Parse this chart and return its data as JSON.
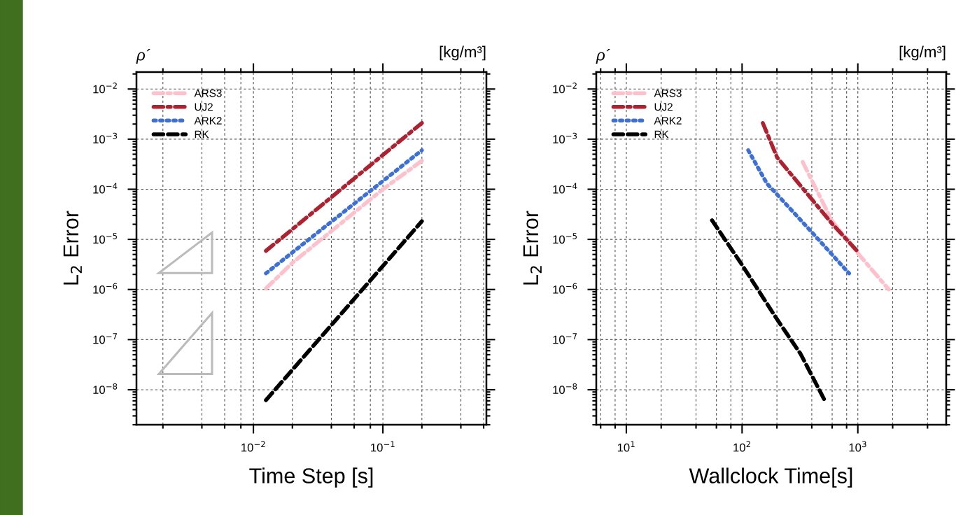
{
  "chart_data": [
    {
      "type": "line",
      "title": "ρ´",
      "annotations": [
        "[kg/m³]"
      ],
      "xlabel": "Time Step [s]",
      "ylabel": "L$_{2}$ Error",
      "log": "xy",
      "grid": true,
      "legend": "top left",
      "xlim": [
        0.00125,
        0.63
      ],
      "ylim": [
        2e-09,
        0.0218
      ],
      "xticks": [
        {
          "value": 0.01,
          "label": "10$^{−2}$"
        },
        {
          "value": 0.1,
          "label": "10$^{−1}$"
        }
      ],
      "yticks": [
        {
          "value": 1e-08,
          "label": "10$^{−8}$"
        },
        {
          "value": 1e-07,
          "label": "10$^{−7}$"
        },
        {
          "value": 1e-06,
          "label": "10$^{−6}$"
        },
        {
          "value": 1e-05,
          "label": "10$^{−5}$"
        },
        {
          "value": 0.0001,
          "label": "10$^{−4}$"
        },
        {
          "value": 0.001,
          "label": "10$^{−3}$"
        },
        {
          "value": 0.01,
          "label": "10$^{−2}$"
        }
      ],
      "series": [
        {
          "name": "ARS3",
          "color": "#ffc0cb",
          "line_style": "dashdot",
          "x": [
            0.0125,
            0.02,
            0.1,
            0.2
          ],
          "values": [
            1.05e-06,
            3.4e-06,
            0.0001,
            0.00037
          ]
        },
        {
          "name": "UJ2",
          "color": "#b0202e",
          "line_style": "dashdot",
          "x": [
            0.0125,
            0.2
          ],
          "values": [
            5.9e-06,
            0.0021
          ]
        },
        {
          "name": "ARK2",
          "color": "#3a6fdc",
          "line_style": "dotted",
          "x": [
            0.0125,
            0.2
          ],
          "values": [
            2.1e-06,
            0.0006
          ]
        },
        {
          "name": "RK",
          "color": "#000000",
          "line_style": "dashed",
          "x": [
            0.0125,
            0.2
          ],
          "values": [
            6.2e-09,
            2.3e-05
          ]
        }
      ]
    },
    {
      "type": "line",
      "title": "ρ´",
      "annotations": [
        "[kg/m³]"
      ],
      "xlabel": "Wallclock Time[s]",
      "ylabel": "L$_{2}$ Error",
      "log": "xy",
      "grid": true,
      "legend": "top left",
      "xlim": [
        5.5,
        5800
      ],
      "ylim": [
        2e-09,
        0.0218
      ],
      "xticks": [
        {
          "value": 10,
          "label": "10$^{1}$"
        },
        {
          "value": 100,
          "label": "10$^{2}$"
        },
        {
          "value": 1000,
          "label": "10$^{3}$"
        }
      ],
      "yticks": [
        {
          "value": 1e-08,
          "label": "10$^{−8}$"
        },
        {
          "value": 1e-07,
          "label": "10$^{−7}$"
        },
        {
          "value": 1e-06,
          "label": "10$^{−6}$"
        },
        {
          "value": 1e-05,
          "label": "10$^{−5}$"
        },
        {
          "value": 0.0001,
          "label": "10$^{−4}$"
        },
        {
          "value": 0.001,
          "label": "10$^{−3}$"
        },
        {
          "value": 0.01,
          "label": "10$^{−2}$"
        }
      ],
      "series": [
        {
          "name": "ARS3",
          "color": "#ffc0cb",
          "line_style": "dashdot",
          "x": [
            334,
            594,
            986,
            1850
          ],
          "values": [
            0.00035,
            2.4e-05,
            5.5e-06,
            1e-06
          ]
        },
        {
          "name": "UJ2",
          "color": "#b0202e",
          "line_style": "dashdot",
          "x": [
            151,
            201,
            594,
            986
          ],
          "values": [
            0.0021,
            0.00043,
            2.1e-05,
            5.9e-06
          ]
        },
        {
          "name": "ARK2",
          "color": "#3a6fdc",
          "line_style": "dotted",
          "x": [
            113,
            164,
            393,
            840
          ],
          "values": [
            0.0006,
            0.00013,
            1.46e-05,
            2.1e-06
          ]
        },
        {
          "name": "RK",
          "color": "#000000",
          "line_style": "dashed",
          "x": [
            55,
            99,
            197,
            320,
            520
          ],
          "values": [
            2.4e-05,
            3.2e-06,
            2.7e-07,
            5.2e-08,
            6e-09
          ]
        }
      ]
    }
  ]
}
